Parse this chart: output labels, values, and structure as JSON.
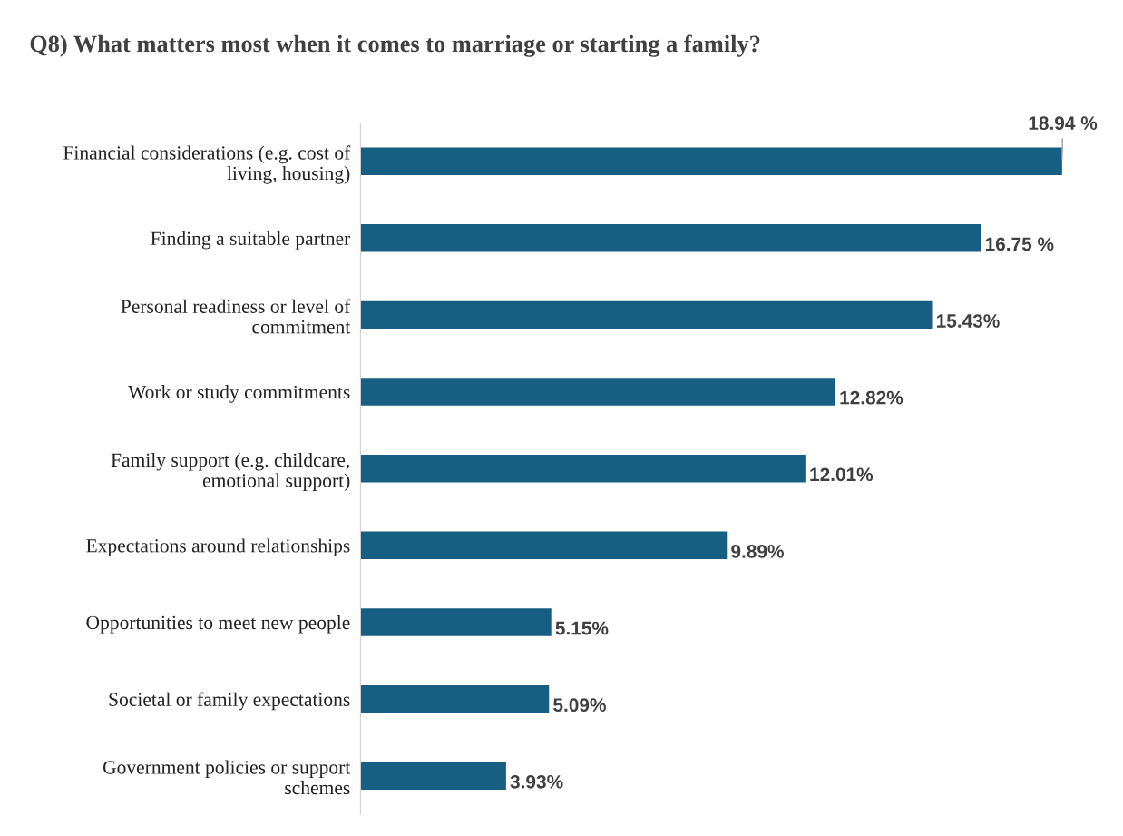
{
  "chart_data": {
    "type": "bar",
    "orientation": "horizontal",
    "title": "Q8) What matters most when it comes to marriage or starting a family?",
    "categories": [
      "Financial considerations (e.g. cost of\nliving, housing)",
      "Finding a suitable partner",
      "Personal readiness or level of\ncommitment",
      "Work or study commitments",
      "Family support (e.g. childcare,\nemotional support)",
      "Expectations around relationships",
      "Opportunities to meet new people",
      "Societal or family expectations",
      "Government policies or support\nschemes"
    ],
    "values": [
      18.94,
      16.75,
      15.43,
      12.82,
      12.01,
      9.89,
      5.15,
      5.09,
      3.93
    ],
    "value_labels": [
      "18.94 %",
      "16.75 %",
      "15.43%",
      "12.82%",
      "12.01%",
      "9.89%",
      "5.15%",
      "5.09%",
      "3.93%"
    ],
    "color": "#175f82",
    "tick_labels": "y",
    "grid": false,
    "legend": false
  }
}
